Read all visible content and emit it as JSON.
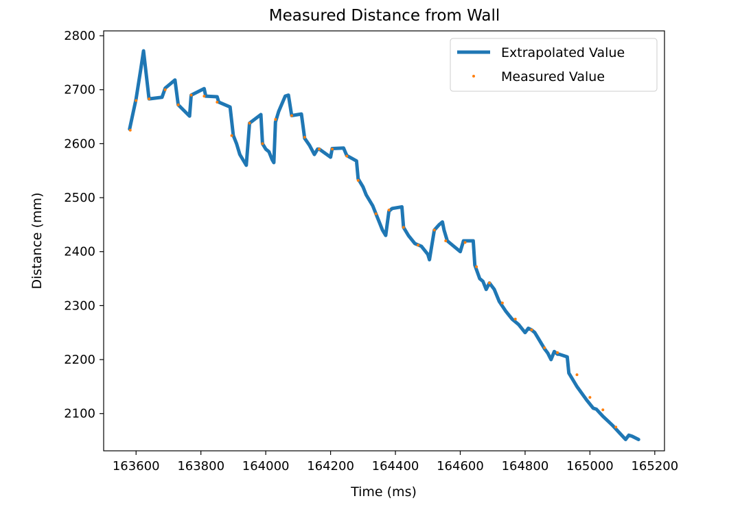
{
  "chart_data": {
    "type": "line",
    "title": "Measured Distance from Wall",
    "xlabel": "Time (ms)",
    "ylabel": "Distance (mm)",
    "xlim": [
      163500,
      165230
    ],
    "ylim": [
      2031,
      2809
    ],
    "xticks": [
      163600,
      163800,
      164000,
      164200,
      164400,
      164600,
      164800,
      165000,
      165200
    ],
    "yticks": [
      2100,
      2200,
      2300,
      2400,
      2500,
      2600,
      2700,
      2800
    ],
    "grid": false,
    "legend_position": "top-right",
    "colors": {
      "extrapolated": "#1f77b4",
      "measured": "#ff7f0e"
    },
    "series": [
      {
        "name": "Extrapolated Value",
        "style": "line",
        "x": [
          163580,
          163600,
          163615,
          163623,
          163640,
          163680,
          163690,
          163720,
          163730,
          163765,
          163770,
          163810,
          163815,
          163850,
          163855,
          163890,
          163900,
          163910,
          163920,
          163930,
          163940,
          163950,
          163985,
          163990,
          164000,
          164010,
          164020,
          164025,
          164030,
          164040,
          164060,
          164070,
          164080,
          164110,
          164120,
          164135,
          164150,
          164160,
          164165,
          164200,
          164205,
          164240,
          164250,
          164280,
          164285,
          164300,
          164310,
          164320,
          164330,
          164340,
          164350,
          164360,
          164370,
          164380,
          164390,
          164420,
          164425,
          164440,
          164460,
          164480,
          164500,
          164505,
          164520,
          164535,
          164545,
          164550,
          164560,
          164580,
          164600,
          164610,
          164640,
          164645,
          164660,
          164670,
          164680,
          164690,
          164705,
          164720,
          164740,
          164760,
          164780,
          164800,
          164810,
          164820,
          164830,
          164840,
          164860,
          164870,
          164880,
          164890,
          164900,
          164905,
          164930,
          164935,
          164950,
          164960,
          164990,
          165010,
          165020,
          165040,
          165070,
          165090,
          165110,
          165120,
          165130,
          165150
        ],
        "y": [
          2627,
          2683,
          2740,
          2772,
          2683,
          2686,
          2703,
          2718,
          2672,
          2651,
          2690,
          2702,
          2688,
          2687,
          2677,
          2668,
          2615,
          2600,
          2580,
          2570,
          2560,
          2638,
          2654,
          2600,
          2590,
          2585,
          2570,
          2565,
          2640,
          2660,
          2688,
          2690,
          2652,
          2655,
          2610,
          2597,
          2580,
          2590,
          2590,
          2575,
          2591,
          2592,
          2578,
          2568,
          2535,
          2520,
          2505,
          2495,
          2485,
          2470,
          2455,
          2440,
          2430,
          2475,
          2480,
          2483,
          2445,
          2430,
          2415,
          2410,
          2395,
          2385,
          2440,
          2450,
          2455,
          2440,
          2420,
          2410,
          2400,
          2420,
          2420,
          2375,
          2350,
          2345,
          2330,
          2342,
          2330,
          2308,
          2290,
          2275,
          2265,
          2250,
          2258,
          2255,
          2250,
          2240,
          2220,
          2212,
          2200,
          2215,
          2210,
          2210,
          2205,
          2175,
          2160,
          2150,
          2125,
          2110,
          2108,
          2095,
          2078,
          2065,
          2052,
          2060,
          2058,
          2052
        ]
      },
      {
        "name": "Measured Value",
        "style": "points",
        "x": [
          163582,
          163600,
          163640,
          163690,
          163730,
          163770,
          163810,
          163850,
          163895,
          163950,
          163990,
          164030,
          164080,
          164120,
          164165,
          164205,
          164250,
          164285,
          164340,
          164380,
          164425,
          164470,
          164520,
          164555,
          164615,
          164650,
          164690,
          164730,
          164770,
          164820,
          164860,
          164900,
          164960,
          165000,
          165040,
          165080
        ],
        "y": [
          2625,
          2680,
          2683,
          2700,
          2672,
          2690,
          2688,
          2677,
          2615,
          2638,
          2600,
          2645,
          2652,
          2612,
          2590,
          2590,
          2577,
          2532,
          2470,
          2477,
          2445,
          2412,
          2440,
          2420,
          2417,
          2372,
          2342,
          2305,
          2275,
          2255,
          2222,
          2213,
          2172,
          2130,
          2107,
          2075
        ]
      }
    ]
  }
}
